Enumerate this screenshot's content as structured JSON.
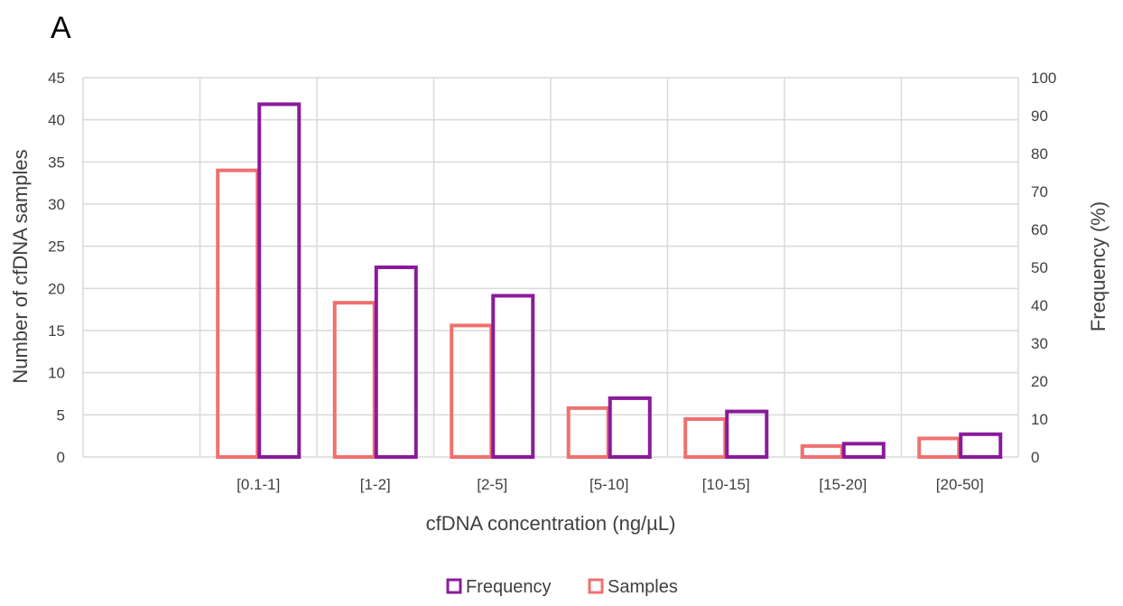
{
  "panel_label": "A",
  "colors": {
    "frequency": "#8B1A9B",
    "samples": "#F07070",
    "grid": "#D9D9D9",
    "text": "#404040"
  },
  "chart_data": {
    "type": "bar",
    "categories": [
      "",
      "[0.1-1]",
      "[1-2]",
      "[2-5]",
      "[5-10]",
      "[10-15]",
      "[15-20]",
      "[20-50]"
    ],
    "series": [
      {
        "name": "Samples",
        "axis": "left",
        "values": [
          0,
          34,
          18.3,
          15.6,
          5.8,
          4.5,
          1.3,
          2.2
        ]
      },
      {
        "name": "Frequency",
        "axis": "right",
        "values": [
          0,
          93,
          50,
          42.5,
          15.5,
          12,
          3.5,
          6
        ]
      }
    ],
    "xlabel": "cfDNA concentration (ng/µL)",
    "ylabel": "Number of cfDNA samples",
    "y2label": "Frequency (%)",
    "ylim": [
      0,
      45
    ],
    "y2lim": [
      0,
      100
    ],
    "yticks": [
      0,
      5,
      10,
      15,
      20,
      25,
      30,
      35,
      40,
      45
    ],
    "y2ticks": [
      0,
      10,
      20,
      30,
      40,
      50,
      60,
      70,
      80,
      90,
      100
    ],
    "grid": true,
    "legend_position": "bottom",
    "legend": [
      "Frequency",
      "Samples"
    ]
  }
}
